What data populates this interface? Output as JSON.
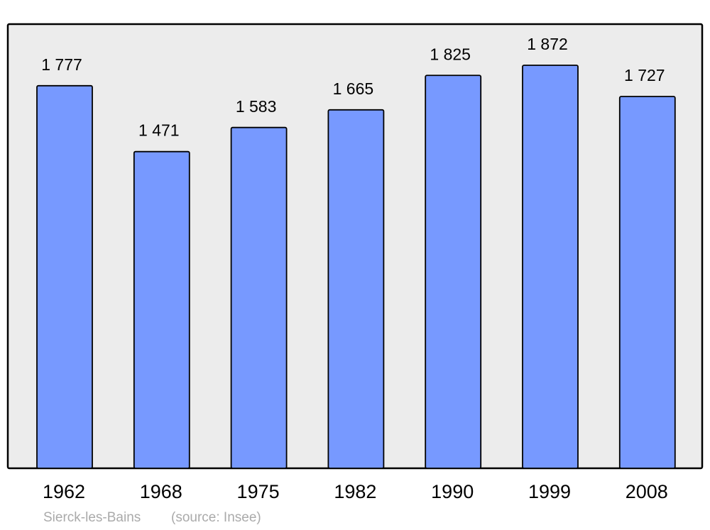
{
  "chart_data": {
    "type": "bar",
    "categories": [
      "1962",
      "1968",
      "1975",
      "1982",
      "1990",
      "1999",
      "2008"
    ],
    "values": [
      1777,
      1471,
      1583,
      1665,
      1825,
      1872,
      1727
    ],
    "value_labels": [
      "1 777",
      "1 471",
      "1 583",
      "1 665",
      "1 825",
      "1 872",
      "1 727"
    ],
    "color": "#7799ff",
    "place": "Sierck-les-Bains",
    "source": "(source: Insee)"
  }
}
